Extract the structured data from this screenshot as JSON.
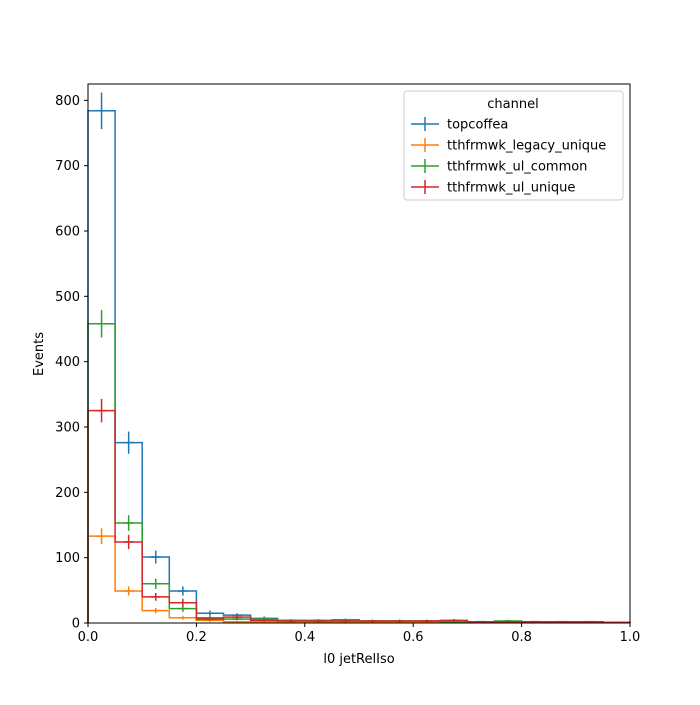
{
  "chart_data": {
    "type": "step-histogram",
    "xlabel": "l0 jetRelIso",
    "ylabel": "Events",
    "xlim": [
      0.0,
      1.0
    ],
    "ylim": [
      0,
      825
    ],
    "x_ticks": [
      0.0,
      0.2,
      0.4,
      0.6,
      0.8,
      1.0
    ],
    "x_tick_labels": [
      "0.0",
      "0.2",
      "0.4",
      "0.6",
      "0.8",
      "1.0"
    ],
    "y_ticks": [
      0,
      100,
      200,
      300,
      400,
      500,
      600,
      700,
      800
    ],
    "y_tick_labels": [
      "0",
      "100",
      "200",
      "300",
      "400",
      "500",
      "600",
      "700",
      "800"
    ],
    "bin_edges": [
      0.0,
      0.05,
      0.1,
      0.15,
      0.2,
      0.25,
      0.3,
      0.35,
      0.4,
      0.45,
      0.5,
      0.55,
      0.6,
      0.65,
      0.7,
      0.75,
      0.8,
      0.85,
      0.9,
      0.95,
      1.0
    ],
    "legend": {
      "title": "channel",
      "placement": "upper-right"
    },
    "grid": false,
    "series": [
      {
        "name": "topcoffea",
        "color": "#1f77b4",
        "values": [
          784,
          276,
          101,
          49,
          15,
          12,
          7,
          4,
          4,
          4,
          3,
          3,
          3,
          2,
          2,
          2,
          2,
          2,
          2,
          1
        ],
        "errors": [
          28,
          17,
          10,
          7,
          4,
          3,
          3,
          2,
          2,
          2,
          2,
          2,
          2,
          1,
          1,
          1,
          1,
          1,
          1,
          1
        ]
      },
      {
        "name": "tthfrmwk_legacy_unique",
        "color": "#ff7f0e",
        "values": [
          133,
          49,
          19,
          8,
          4,
          2,
          2,
          1,
          1,
          1,
          1,
          1,
          1,
          1,
          1,
          1,
          1,
          1,
          1,
          1
        ],
        "errors": [
          12,
          7,
          4,
          3,
          2,
          1,
          1,
          1,
          1,
          1,
          1,
          1,
          1,
          1,
          1,
          1,
          1,
          1,
          1,
          1
        ]
      },
      {
        "name": "tthfrmwk_ul_common",
        "color": "#2ca02c",
        "values": [
          458,
          153,
          60,
          22,
          8,
          6,
          6,
          4,
          3,
          5,
          3,
          3,
          3,
          2,
          2,
          3,
          2,
          1,
          1,
          1
        ],
        "errors": [
          21,
          12,
          8,
          5,
          3,
          2,
          2,
          2,
          2,
          2,
          2,
          2,
          2,
          1,
          1,
          2,
          1,
          1,
          1,
          1
        ]
      },
      {
        "name": "tthfrmwk_ul_unique",
        "color": "#d62728",
        "values": [
          325,
          124,
          40,
          31,
          6,
          9,
          4,
          3,
          3,
          3,
          3,
          3,
          3,
          4,
          2,
          2,
          2,
          2,
          2,
          1
        ],
        "errors": [
          18,
          11,
          6,
          6,
          2,
          3,
          2,
          2,
          2,
          2,
          2,
          2,
          2,
          2,
          1,
          1,
          1,
          1,
          1,
          1
        ]
      }
    ]
  }
}
